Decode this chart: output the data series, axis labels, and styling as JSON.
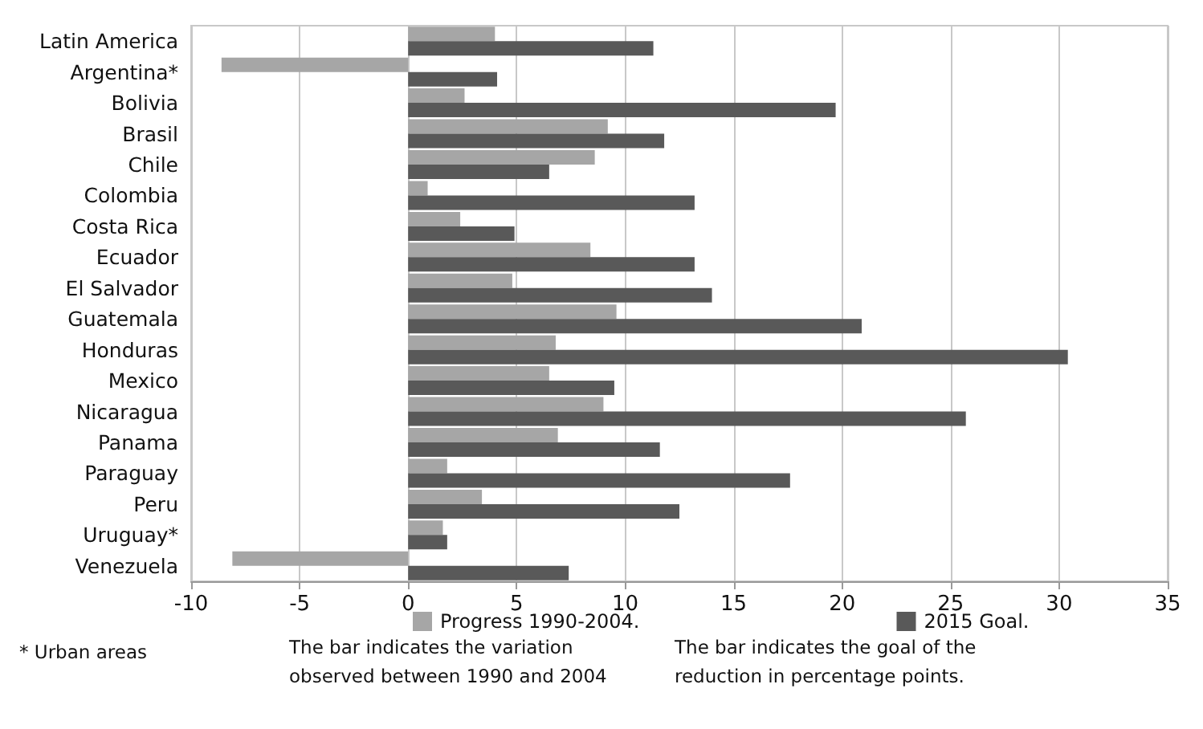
{
  "chart_data": {
    "type": "bar",
    "orientation": "horizontal",
    "categories": [
      "Latin America",
      "Argentina*",
      "Bolivia",
      "Brasil",
      "Chile",
      "Colombia",
      "Costa Rica",
      "Ecuador",
      "El Salvador",
      "Guatemala",
      "Honduras",
      "Mexico",
      "Nicaragua",
      "Panama",
      "Paraguay",
      "Peru",
      "Uruguay*",
      "Venezuela"
    ],
    "series": [
      {
        "name": "Progress 1990-2004.",
        "color": "#a6a6a6",
        "values": [
          4.0,
          -8.6,
          2.6,
          9.2,
          8.6,
          0.9,
          2.4,
          8.4,
          4.8,
          9.6,
          6.8,
          6.5,
          9.0,
          6.9,
          1.8,
          3.4,
          1.6,
          -8.1
        ]
      },
      {
        "name": "2015 Goal.",
        "color": "#595959",
        "values": [
          11.3,
          4.1,
          19.7,
          11.8,
          6.5,
          13.2,
          4.9,
          13.2,
          14.0,
          20.9,
          30.4,
          9.5,
          25.7,
          11.6,
          17.6,
          12.5,
          1.8,
          7.4
        ]
      }
    ],
    "xlim": [
      -10,
      35
    ],
    "xticks": [
      -10,
      -5,
      0,
      5,
      10,
      15,
      20,
      25,
      30,
      35
    ],
    "grid": "x",
    "legend": "bottom",
    "annotations": [
      "The bar indicates the variation observed between 1990 and 2004",
      "The bar indicates the goal of the reduction in percentage points.",
      "* Urban areas"
    ]
  }
}
